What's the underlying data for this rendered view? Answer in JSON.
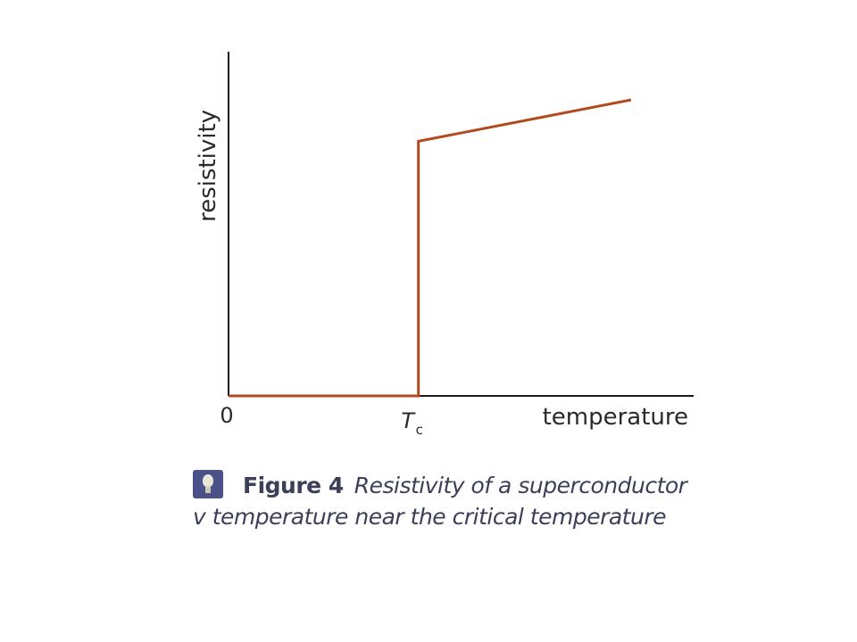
{
  "chart_data": {
    "type": "line",
    "xlabel": "temperature",
    "ylabel": "resistivity",
    "x_tick_labels": {
      "origin": "0",
      "critical": "T",
      "critical_subscript": "c"
    },
    "x_range": [
      0,
      2.45
    ],
    "y_range": [
      0,
      1.0
    ],
    "series": [
      {
        "points": [
          {
            "x": 0,
            "y": 0
          },
          {
            "x": 1,
            "y": 0
          },
          {
            "x": 1,
            "y": 0.74
          },
          {
            "x": 2.12,
            "y": 0.86
          }
        ]
      }
    ],
    "colors": {
      "curve": "#b34a1f",
      "axis": "#1a1a1a"
    },
    "grid": false
  },
  "caption": {
    "icon": "lightbulb-icon",
    "figure_label": "Figure 4",
    "text": "Resistivity of a superconductor v temperature near the critical temperature"
  }
}
